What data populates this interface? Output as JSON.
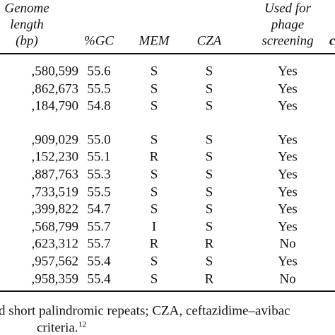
{
  "header": {
    "length": [
      "Genome",
      "length",
      "(bp)"
    ],
    "gc": "%GC",
    "mem": "MEM",
    "cza": "CZA",
    "used": [
      "Used for",
      "phage",
      "screening"
    ],
    "cut": "c"
  },
  "table": {
    "groups": [
      [
        [
          ",580,599",
          "55.6",
          "S",
          "S",
          "Yes"
        ],
        [
          ",862,673",
          "55.5",
          "S",
          "S",
          "Yes"
        ],
        [
          ",184,790",
          "54.8",
          "S",
          "S",
          "Yes"
        ]
      ],
      [
        [
          ",909,029",
          "55.0",
          "S",
          "S",
          "Yes"
        ],
        [
          ",152,230",
          "55.1",
          "R",
          "S",
          "Yes"
        ],
        [
          ",887,763",
          "55.3",
          "S",
          "S",
          "Yes"
        ],
        [
          ",733,519",
          "55.5",
          "S",
          "S",
          "Yes"
        ],
        [
          ",399,822",
          "54.7",
          "S",
          "S",
          "Yes"
        ],
        [
          ",568,799",
          "55.7",
          "I",
          "S",
          "Yes"
        ],
        [
          ",623,312",
          "55.7",
          "R",
          "R",
          "No"
        ],
        [
          ",957,562",
          "55.4",
          "S",
          "S",
          "Yes"
        ],
        [
          ",958,359",
          "55.4",
          "S",
          "R",
          "No"
        ]
      ]
    ]
  },
  "footnote": {
    "lines": [
      "d short palindromic repeats; CZA, ceftazidime–avibac",
      "criteria."
    ],
    "ref": "12"
  }
}
